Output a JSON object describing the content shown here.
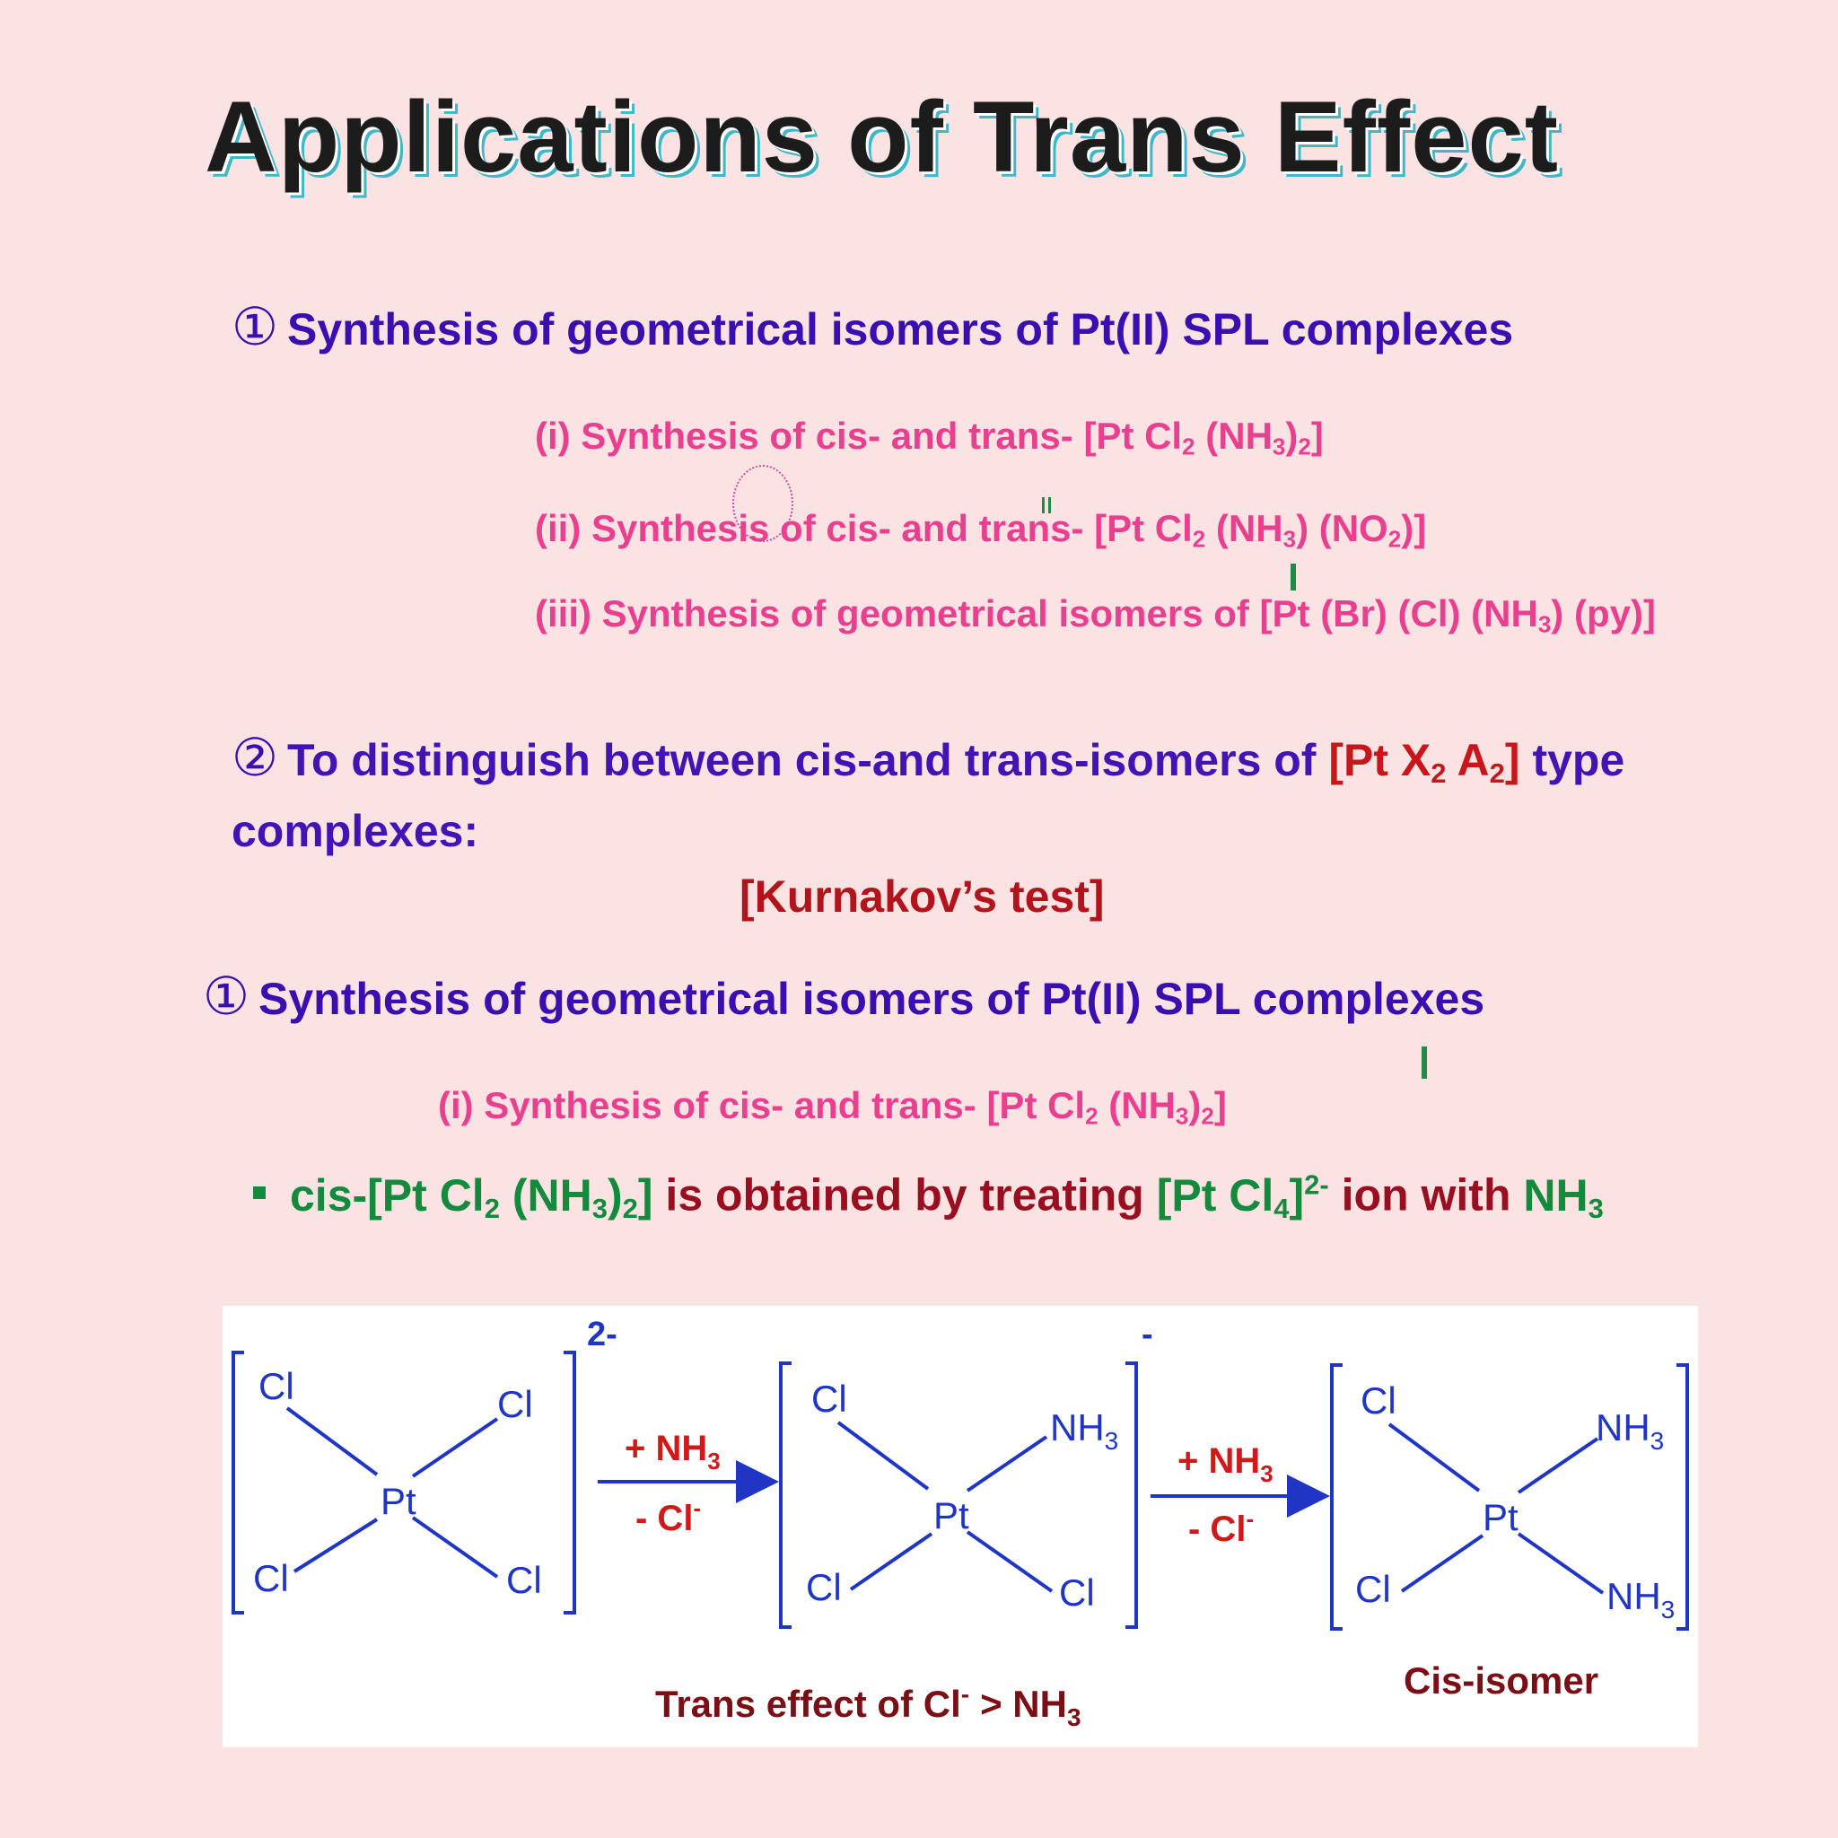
{
  "title": "Applications of Trans Effect",
  "section1": {
    "num": "①",
    "heading": "Synthesis of geometrical isomers of Pt(II) SPL complexes",
    "items": [
      {
        "pre": "(i) Synthesis of cis- and trans- [Pt Cl",
        "sub1": "2",
        "mid": " (NH",
        "sub2": "3",
        "post": ")",
        "sub3": "2",
        "end": "]"
      },
      {
        "pre": "(ii) Synthesis of cis- and trans- [Pt Cl",
        "sub1": "2",
        "mid": " (NH",
        "sub2": "3",
        "post": ") (NO",
        "sub3": "2",
        "end": ")]"
      },
      {
        "pre": "(iii) Synthesis of geometrical isomers of [Pt (Br) (Cl) (NH",
        "sub1": "3",
        "end": ") (py)]"
      }
    ]
  },
  "section2": {
    "num": "②",
    "heading_pre": "To distinguish between cis-and trans-isomers of ",
    "formula_pre": "[Pt X",
    "formula_sub1": "2",
    "formula_mid": " A",
    "formula_sub2": "2",
    "formula_end": "]",
    "heading_post": " type",
    "heading_line2": "complexes:",
    "test": "[Kurnakov’s test]"
  },
  "section3": {
    "num": "①",
    "heading": "Synthesis of geometrical isomers of Pt(II) SPL complexes",
    "item": {
      "pre": "(i) Synthesis of cis- and trans- [Pt Cl",
      "sub1": "2",
      "mid": " (NH",
      "sub2": "3",
      "post": ")",
      "sub3": "2",
      "end": "]"
    }
  },
  "bullet": {
    "g1_pre": "cis-[Pt Cl",
    "g1_sub1": "2",
    "g1_mid": " (NH",
    "g1_sub2": "3",
    "g1_post": ")",
    "g1_sub3": "2",
    "g1_end": "]",
    "r1": " is obtained by treating ",
    "g2_pre": "[Pt Cl",
    "g2_sub": "4",
    "g2_end": "]",
    "g2_sup": "2-",
    "r2": " ion with ",
    "g3": "NH",
    "g3_sub": "3"
  },
  "diagram": {
    "metal": "Pt",
    "cl": "Cl",
    "nh": "NH",
    "three": "3",
    "charge1": "2-",
    "charge2": "-",
    "reagent_plus": "+ NH",
    "reagent_minus": "- Cl",
    "minus_sup": "-",
    "caption_pre": "Trans effect of  Cl",
    "caption_gt": ">  NH",
    "label_cis": "Cis-isomer"
  },
  "colors": {
    "title": "#1c1c1c",
    "title_shadow": "#3fb7c7",
    "heading": "#3a0fb0",
    "pink": "#e83f8f",
    "red": "#c8171b",
    "green": "#138a3c",
    "diagram_blue": "#1f35c4"
  }
}
